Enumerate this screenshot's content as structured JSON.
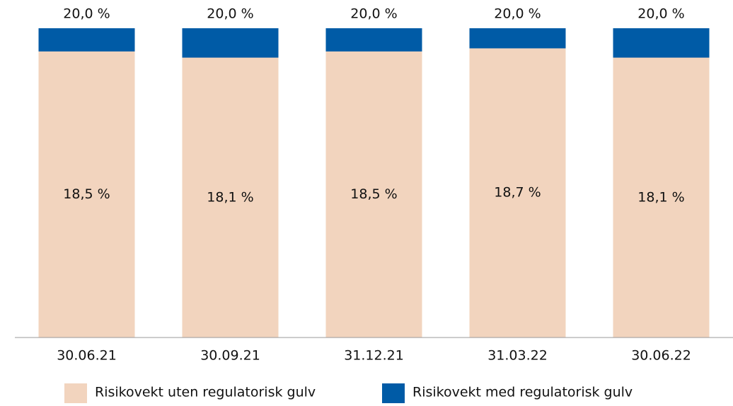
{
  "chart_data": {
    "type": "overlap_bar",
    "categories": [
      "30.06.21",
      "30.09.21",
      "31.12.21",
      "31.03.22",
      "30.06.22"
    ],
    "series": [
      {
        "name": "Risikovekt uten regulatorisk gulv",
        "color": "#f2d4be",
        "values": [
          18.5,
          18.1,
          18.5,
          18.7,
          18.1
        ],
        "value_labels": [
          "18,5 %",
          "18,1 %",
          "18,5 %",
          "18,7 %",
          "18,1 %"
        ]
      },
      {
        "name": "Risikovekt med regulatorisk gulv",
        "color": "#005ba6",
        "values": [
          20.0,
          20.0,
          20.0,
          20.0,
          20.0
        ],
        "value_labels": [
          "20,0 %",
          "20,0 %",
          "20,0 %",
          "20,0 %",
          "20,0 %"
        ]
      }
    ],
    "ylim": [
      0,
      20
    ],
    "legend": "bottom"
  }
}
